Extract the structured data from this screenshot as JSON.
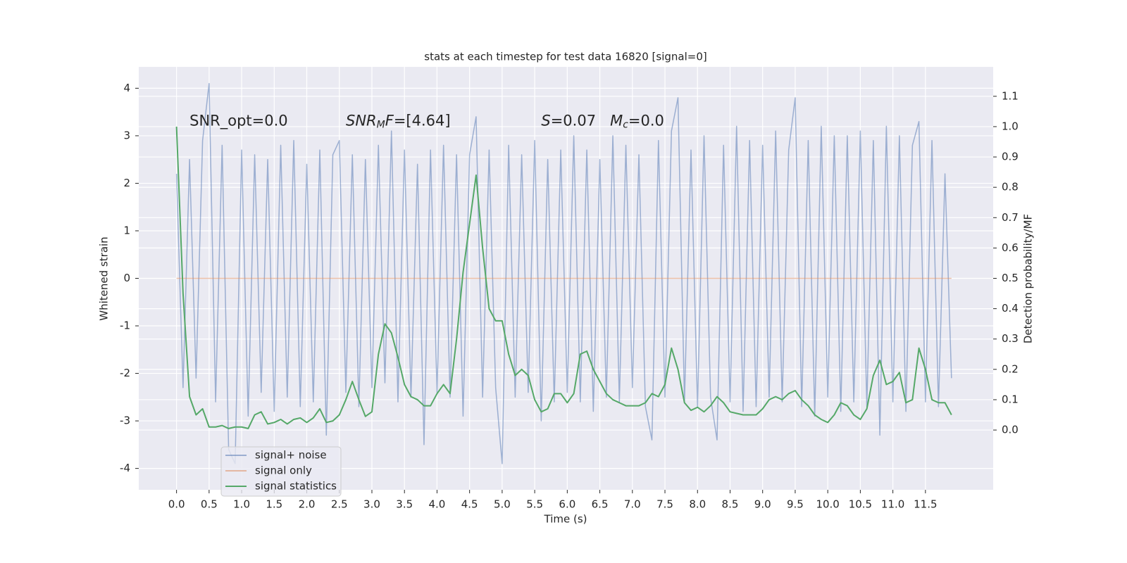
{
  "chart_data": {
    "type": "line",
    "title": "stats at each timestep for test data 16820 [signal=0]",
    "xlabel": "Time (s)",
    "ylabel": "Whitened strain",
    "y2label": "Detection probability/MF",
    "annotations": [
      [
        {
          "text": "SNR_opt=0.0",
          "style": "normal"
        }
      ],
      [
        {
          "text": "SNR",
          "style": "italic"
        },
        {
          "text": "M",
          "style": "sub"
        },
        {
          "text": "F",
          "style": "italic"
        },
        {
          "text": "=[4.64]",
          "style": "normal"
        }
      ],
      [
        {
          "text": "S",
          "style": "italic"
        },
        {
          "text": "=0.07   ",
          "style": "normal"
        },
        {
          "text": "M",
          "style": "italic"
        },
        {
          "text": "c",
          "style": "sub"
        },
        {
          "text": "=0.0",
          "style": "normal"
        }
      ]
    ],
    "x": [
      0,
      0.1,
      0.2,
      0.3,
      0.4,
      0.5,
      0.6,
      0.7,
      0.8,
      0.9,
      1,
      1.1,
      1.2,
      1.3,
      1.4,
      1.5,
      1.6,
      1.7,
      1.8,
      1.9,
      2,
      2.1,
      2.2,
      2.3,
      2.4,
      2.5,
      2.6,
      2.7,
      2.8,
      2.9,
      3,
      3.1,
      3.2,
      3.3,
      3.4,
      3.5,
      3.6,
      3.7,
      3.8,
      3.9,
      4,
      4.1,
      4.2,
      4.3,
      4.4,
      4.5,
      4.6,
      4.7,
      4.8,
      4.9,
      5,
      5.1,
      5.2,
      5.3,
      5.4,
      5.5,
      5.6,
      5.7,
      5.8,
      5.9,
      6,
      6.1,
      6.2,
      6.3,
      6.4,
      6.5,
      6.6,
      6.7,
      6.8,
      6.9,
      7,
      7.1,
      7.2,
      7.3,
      7.4,
      7.5,
      7.6,
      7.7,
      7.8,
      7.9,
      8,
      8.1,
      8.2,
      8.3,
      8.4,
      8.5,
      8.6,
      8.7,
      8.8,
      8.9,
      9,
      9.1,
      9.2,
      9.3,
      9.4,
      9.5,
      9.6,
      9.7,
      9.8,
      9.9,
      10,
      10.1,
      10.2,
      10.3,
      10.4,
      10.5,
      10.6,
      10.7,
      10.8,
      10.9,
      11,
      11.1,
      11.2,
      11.3,
      11.4,
      11.5,
      11.6,
      11.7,
      11.8,
      11.9
    ],
    "series": [
      {
        "name": "signal+ noise",
        "color": "#4c72b0",
        "axis": "y",
        "values": [
          2.2,
          -2.3,
          2.5,
          -2.1,
          2.9,
          4.1,
          -2.6,
          2.8,
          -3.6,
          -3.9,
          2.7,
          -2.9,
          2.6,
          -2.4,
          2.5,
          -2.8,
          2.8,
          -2.5,
          2.9,
          -2.7,
          2.4,
          -2.6,
          2.7,
          -3.3,
          2.6,
          2.9,
          -2.4,
          2.6,
          -2.7,
          2.5,
          -2.3,
          2.8,
          -2.2,
          3.1,
          -2.6,
          2.7,
          -2.5,
          2.4,
          -3.5,
          2.7,
          -2.4,
          2.8,
          -2.5,
          2.6,
          -2.9,
          2.6,
          3.4,
          -2.5,
          2.7,
          -2.3,
          -3.9,
          2.8,
          -2.5,
          2.6,
          -2.4,
          2.9,
          -3.0,
          2.5,
          -2.6,
          2.7,
          -2.4,
          3.0,
          -2.6,
          2.7,
          -2.8,
          2.5,
          -2.5,
          3.0,
          -2.6,
          2.8,
          -2.3,
          2.6,
          -2.7,
          -3.4,
          2.9,
          -2.5,
          3.1,
          3.8,
          -2.6,
          2.7,
          -2.7,
          3.0,
          -2.5,
          -3.4,
          2.8,
          -2.6,
          3.2,
          -2.8,
          2.9,
          -2.7,
          2.8,
          -2.5,
          3.1,
          -2.6,
          2.7,
          3.8,
          -2.7,
          2.9,
          -2.9,
          3.2,
          -2.5,
          3.0,
          -2.8,
          3.0,
          -2.6,
          3.1,
          -2.7,
          2.9,
          -3.3,
          3.2,
          -2.6,
          3.0,
          -2.8,
          2.8,
          3.3,
          -2.6,
          2.9,
          -2.7,
          2.2,
          -2.1
        ]
      },
      {
        "name": "signal only",
        "color": "#dd8452",
        "axis": "y",
        "values": [
          0,
          0,
          0,
          0,
          0,
          0,
          0,
          0,
          0,
          0,
          0,
          0,
          0,
          0,
          0,
          0,
          0,
          0,
          0,
          0,
          0,
          0,
          0,
          0,
          0,
          0,
          0,
          0,
          0,
          0,
          0,
          0,
          0,
          0,
          0,
          0,
          0,
          0,
          0,
          0,
          0,
          0,
          0,
          0,
          0,
          0,
          0,
          0,
          0,
          0,
          0,
          0,
          0,
          0,
          0,
          0,
          0,
          0,
          0,
          0,
          0,
          0,
          0,
          0,
          0,
          0,
          0,
          0,
          0,
          0,
          0,
          0,
          0,
          0,
          0,
          0,
          0,
          0,
          0,
          0,
          0,
          0,
          0,
          0,
          0,
          0,
          0,
          0,
          0,
          0,
          0,
          0,
          0,
          0,
          0,
          0,
          0,
          0,
          0,
          0,
          0,
          0,
          0,
          0,
          0,
          0,
          0,
          0,
          0,
          0,
          0,
          0,
          0,
          0,
          0,
          0,
          0,
          0,
          0,
          0
        ]
      },
      {
        "name": "signal statistics",
        "color": "#55a868",
        "axis": "y2",
        "values": [
          1.0,
          0.45,
          0.11,
          0.05,
          0.07,
          0.01,
          0.01,
          0.015,
          0.005,
          0.01,
          0.01,
          0.005,
          0.05,
          0.06,
          0.02,
          0.025,
          0.035,
          0.02,
          0.035,
          0.04,
          0.025,
          0.04,
          0.07,
          0.025,
          0.03,
          0.05,
          0.1,
          0.16,
          0.1,
          0.045,
          0.06,
          0.25,
          0.35,
          0.32,
          0.24,
          0.15,
          0.11,
          0.1,
          0.08,
          0.08,
          0.12,
          0.15,
          0.12,
          0.3,
          0.52,
          0.68,
          0.84,
          0.6,
          0.4,
          0.36,
          0.36,
          0.25,
          0.18,
          0.2,
          0.18,
          0.1,
          0.06,
          0.07,
          0.12,
          0.12,
          0.09,
          0.12,
          0.25,
          0.26,
          0.2,
          0.16,
          0.12,
          0.1,
          0.09,
          0.08,
          0.08,
          0.08,
          0.09,
          0.12,
          0.11,
          0.15,
          0.27,
          0.2,
          0.09,
          0.065,
          0.075,
          0.06,
          0.08,
          0.11,
          0.09,
          0.06,
          0.055,
          0.05,
          0.05,
          0.05,
          0.07,
          0.1,
          0.11,
          0.1,
          0.12,
          0.13,
          0.1,
          0.08,
          0.05,
          0.035,
          0.025,
          0.05,
          0.09,
          0.08,
          0.05,
          0.035,
          0.07,
          0.18,
          0.23,
          0.15,
          0.16,
          0.19,
          0.09,
          0.1,
          0.27,
          0.2,
          0.1,
          0.09,
          0.09,
          0.05
        ]
      }
    ],
    "xlim": [
      -0.58,
      12.54
    ],
    "xticks": [
      {
        "value": 0,
        "label": "0.0"
      },
      0.5,
      {
        "value": 1,
        "label": "1.0"
      },
      1.5,
      {
        "value": 2,
        "label": "2.0"
      },
      2.5,
      {
        "value": 3,
        "label": "3.0"
      },
      3.5,
      {
        "value": 4,
        "label": "4.0"
      },
      4.5,
      {
        "value": 5,
        "label": "5.0"
      },
      5.5,
      {
        "value": 6,
        "label": "6.0"
      },
      6.5,
      {
        "value": 7,
        "label": "7.0"
      },
      7.5,
      {
        "value": 8,
        "label": "8.0"
      },
      8.5,
      {
        "value": 9,
        "label": "9.0"
      },
      9.5,
      {
        "value": 10,
        "label": "10.0"
      },
      10.5,
      {
        "value": 11,
        "label": "11.0"
      },
      11.5
    ],
    "ylim": [
      -4.45,
      4.45
    ],
    "yticks": [
      -4,
      -3,
      -2,
      -1,
      0,
      1,
      2,
      3,
      4
    ],
    "y2lim": [
      -0.197,
      1.197
    ],
    "y2ticks": [
      {
        "value": 0,
        "label": "0.0"
      },
      0.1,
      0.2,
      0.3,
      0.4,
      0.5,
      0.6,
      0.7,
      0.8,
      0.9,
      {
        "value": 1,
        "label": "1.0"
      },
      1.1
    ],
    "grid": true,
    "legend": "lower left"
  }
}
